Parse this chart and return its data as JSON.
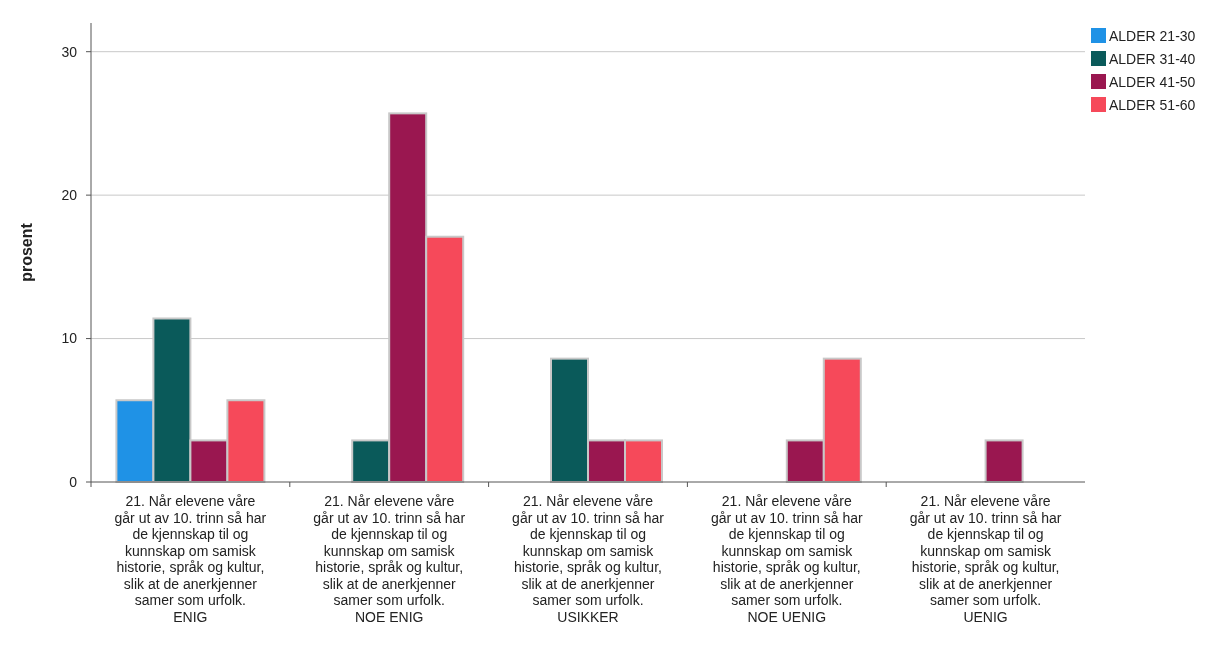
{
  "chart_data": {
    "type": "bar",
    "ylabel": "prosent",
    "categories": [
      "21. Når elevene våre går ut av 10. trinn så har de kjennskap til og kunnskap om samisk historie, språk og kultur, slik at de anerkjenner samer som urfolk.\nENIG",
      "21. Når elevene våre går ut av 10. trinn så har de kjennskap til og kunnskap om samisk historie, språk og kultur, slik at de anerkjenner samer som urfolk.\nNOE ENIG",
      "21. Når elevene våre går ut av 10. trinn så har de kjennskap til og kunnskap om samisk historie, språk og kultur, slik at de anerkjenner samer som urfolk.\nUSIKKER",
      "21. Når elevene våre går ut av 10. trinn så har de kjennskap til og kunnskap om samisk historie, språk og kultur, slik at de anerkjenner samer som urfolk.\nNOE UENIG",
      "21. Når elevene våre går ut av 10. trinn så har de kjennskap til og kunnskap om samisk historie, språk og kultur, slik at de anerkjenner samer som urfolk.\nUENIG"
    ],
    "series": [
      {
        "name": "ALDER 21-30",
        "color": "#1f92e6",
        "values": [
          5.7,
          0,
          0,
          0,
          0
        ]
      },
      {
        "name": "ALDER 31-40",
        "color": "#0a5a5a",
        "values": [
          11.4,
          2.9,
          8.6,
          0,
          0
        ]
      },
      {
        "name": "ALDER 41-50",
        "color": "#9a1750",
        "values": [
          2.9,
          25.7,
          2.9,
          2.9,
          2.9
        ]
      },
      {
        "name": "ALDER 51-60",
        "color": "#f6495a",
        "values": [
          5.7,
          17.1,
          2.9,
          8.6,
          0
        ]
      }
    ],
    "ylim": [
      0,
      32
    ],
    "yticks": [
      0,
      10,
      20,
      30
    ],
    "grid": "y",
    "legend": "top right"
  }
}
